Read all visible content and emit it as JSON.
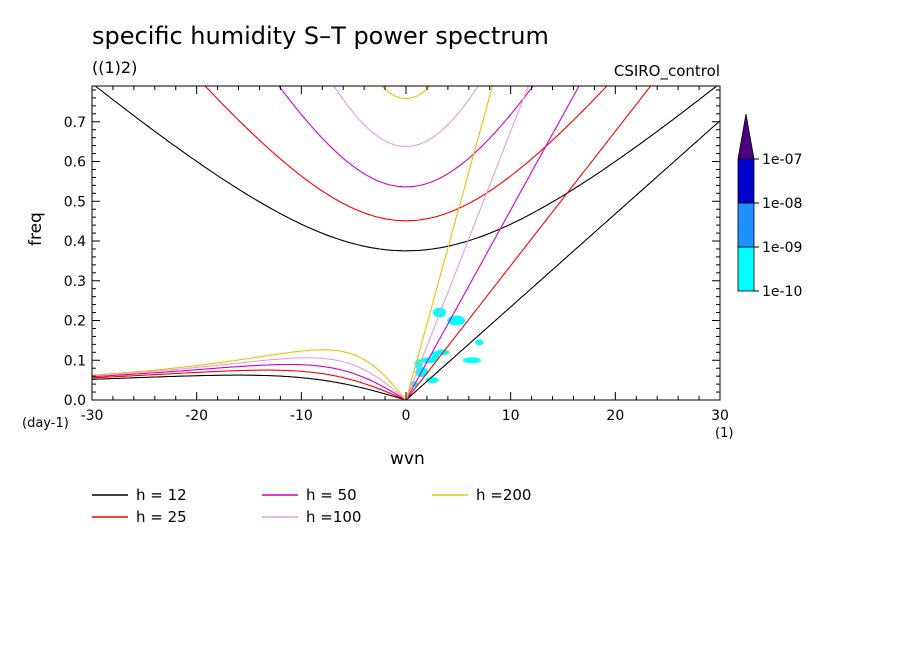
{
  "header": {
    "title": "specific humidity S–T power spectrum",
    "units": "((1)2)",
    "model": "CSIRO_control"
  },
  "chart_data": {
    "type": "heatmap",
    "xlabel": "wvn",
    "ylabel": "freq",
    "x_unit": "(1)",
    "y_unit": "(day-1)",
    "xlim": [
      -30,
      30
    ],
    "ylim": [
      0,
      0.79
    ],
    "x_ticks": [
      "-30",
      "-20",
      "-10",
      "0",
      "10",
      "20",
      "30"
    ],
    "y_ticks": [
      "0.0",
      "0.1",
      "0.2",
      "0.3",
      "0.4",
      "0.5",
      "0.6",
      "0.7"
    ],
    "dispersion_curves": [
      {
        "name": "h = 12",
        "h": 12,
        "color": "#000000"
      },
      {
        "name": "h = 25",
        "h": 25,
        "color": "#ff0000"
      },
      {
        "name": "h = 50",
        "h": 50,
        "color": "#d000d0"
      },
      {
        "name": "h =100",
        "h": 100,
        "color": "#e0a0e0"
      },
      {
        "name": "h =200",
        "h": 200,
        "color": "#f0c000"
      }
    ],
    "colorbar": {
      "levels": [
        "1e-10",
        "1e-09",
        "1e-08",
        "1e-07"
      ],
      "colors": [
        "#00ffff",
        "#1e90ff",
        "#0000cd",
        "#4b0082"
      ]
    },
    "power_blobs": [
      {
        "x": 0.8,
        "y": 0.04
      },
      {
        "x": 1.5,
        "y": 0.07
      },
      {
        "x": 2.2,
        "y": 0.1
      },
      {
        "x": 2.8,
        "y": 0.11
      },
      {
        "x": 3.5,
        "y": 0.12
      },
      {
        "x": 4.8,
        "y": 0.2
      },
      {
        "x": 7.0,
        "y": 0.145
      },
      {
        "x": 3.2,
        "y": 0.22
      },
      {
        "x": 6.3,
        "y": 0.1
      },
      {
        "x": 1.2,
        "y": 0.09
      },
      {
        "x": 2.5,
        "y": 0.05
      }
    ]
  }
}
